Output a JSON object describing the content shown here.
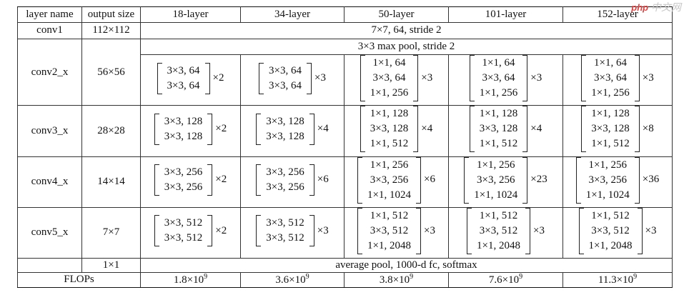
{
  "headers": [
    "layer name",
    "output size",
    "18-layer",
    "34-layer",
    "50-layer",
    "101-layer",
    "152-layer"
  ],
  "rows": [
    {
      "name": "conv1",
      "size": "112×112",
      "span": "7×7, 64, stride 2"
    },
    {
      "span": "3×3 max pool, stride 2"
    },
    {
      "name": "conv2_x",
      "size": "56×56",
      "blocks": [
        {
          "lines": [
            "3×3, 64",
            "3×3, 64"
          ],
          "mult": "×2"
        },
        {
          "lines": [
            "3×3, 64",
            "3×3, 64"
          ],
          "mult": "×3"
        },
        {
          "lines": [
            "1×1, 64",
            "3×3, 64",
            "1×1, 256"
          ],
          "mult": "×3"
        },
        {
          "lines": [
            "1×1, 64",
            "3×3, 64",
            "1×1, 256"
          ],
          "mult": "×3"
        },
        {
          "lines": [
            "1×1, 64",
            "3×3, 64",
            "1×1, 256"
          ],
          "mult": "×3"
        }
      ]
    },
    {
      "name": "conv3_x",
      "size": "28×28",
      "blocks": [
        {
          "lines": [
            "3×3, 128",
            "3×3, 128"
          ],
          "mult": "×2"
        },
        {
          "lines": [
            "3×3, 128",
            "3×3, 128"
          ],
          "mult": "×4"
        },
        {
          "lines": [
            "1×1, 128",
            "3×3, 128",
            "1×1, 512"
          ],
          "mult": "×4"
        },
        {
          "lines": [
            "1×1, 128",
            "3×3, 128",
            "1×1, 512"
          ],
          "mult": "×4"
        },
        {
          "lines": [
            "1×1, 128",
            "3×3, 128",
            "1×1, 512"
          ],
          "mult": "×8"
        }
      ]
    },
    {
      "name": "conv4_x",
      "size": "14×14",
      "blocks": [
        {
          "lines": [
            "3×3, 256",
            "3×3, 256"
          ],
          "mult": "×2"
        },
        {
          "lines": [
            "3×3, 256",
            "3×3, 256"
          ],
          "mult": "×6"
        },
        {
          "lines": [
            "1×1, 256",
            "3×3, 256",
            "1×1, 1024"
          ],
          "mult": "×6"
        },
        {
          "lines": [
            "1×1, 256",
            "3×3, 256",
            "1×1, 1024"
          ],
          "mult": "×23"
        },
        {
          "lines": [
            "1×1, 256",
            "3×3, 256",
            "1×1, 1024"
          ],
          "mult": "×36"
        }
      ]
    },
    {
      "name": "conv5_x",
      "size": "7×7",
      "blocks": [
        {
          "lines": [
            "3×3, 512",
            "3×3, 512"
          ],
          "mult": "×2"
        },
        {
          "lines": [
            "3×3, 512",
            "3×3, 512"
          ],
          "mult": "×3"
        },
        {
          "lines": [
            "1×1, 512",
            "3×3, 512",
            "1×1, 2048"
          ],
          "mult": "×3"
        },
        {
          "lines": [
            "1×1, 512",
            "3×3, 512",
            "1×1, 2048"
          ],
          "mult": "×3"
        },
        {
          "lines": [
            "1×1, 512",
            "3×3, 512",
            "1×1, 2048"
          ],
          "mult": "×3"
        }
      ]
    },
    {
      "name": "",
      "size": "1×1",
      "span": "average pool, 1000-d fc, softmax"
    }
  ],
  "flops": {
    "label": "FLOPs",
    "values": [
      {
        "mant": "1.8×10",
        "exp": "9"
      },
      {
        "mant": "3.6×10",
        "exp": "9"
      },
      {
        "mant": "3.8×10",
        "exp": "9"
      },
      {
        "mant": "7.6×10",
        "exp": "9"
      },
      {
        "mant": "11.3×10",
        "exp": "9"
      }
    ]
  },
  "watermark": {
    "logo": "php",
    "text": "中文网"
  }
}
